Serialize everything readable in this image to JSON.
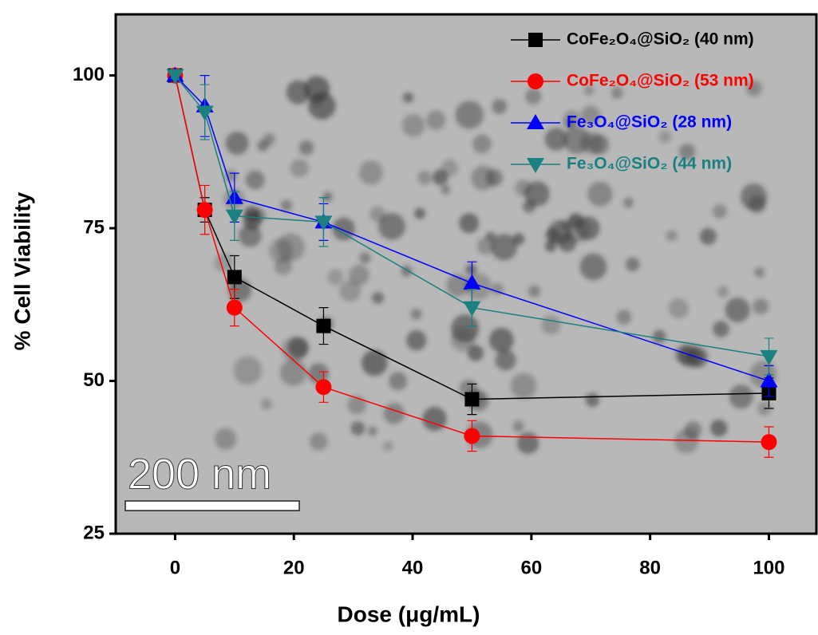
{
  "chart_data": {
    "type": "line",
    "xlabel": "Dose (μg/mL)",
    "ylabel": "% Cell Viability",
    "annotation": "200 nm",
    "x": [
      0,
      5,
      10,
      25,
      50,
      100
    ],
    "series": [
      {
        "name": "CoFe₂O₄@SiO₂ (40 nm)",
        "color": "#000000",
        "marker": "square",
        "values": [
          100,
          78,
          67,
          59,
          47,
          48
        ],
        "errors": [
          0.5,
          2,
          3.5,
          3,
          2.5,
          2.5
        ]
      },
      {
        "name": "CoFe₂O₄@SiO₂ (53 nm)",
        "color": "#ff0000",
        "marker": "circle",
        "values": [
          100,
          78,
          62,
          49,
          41,
          40
        ],
        "errors": [
          0.5,
          4,
          3,
          2.5,
          2.5,
          2.5
        ]
      },
      {
        "name": "Fe₃O₄@SiO₂ (28 nm)",
        "color": "#0000ff",
        "marker": "triangle-up",
        "values": [
          100,
          95,
          80,
          76,
          66,
          50
        ],
        "errors": [
          0.5,
          5,
          4,
          3,
          3.5,
          2.5
        ]
      },
      {
        "name": "Fe₃O₄@SiO₂ (44 nm)",
        "color": "#1a8080",
        "marker": "triangle-down",
        "values": [
          100,
          94,
          77,
          76,
          62,
          54
        ],
        "errors": [
          0.5,
          4.5,
          4,
          4,
          3,
          3
        ]
      }
    ],
    "xlim": [
      -10,
      108
    ],
    "ylim": [
      25,
      110
    ],
    "xticks": [
      0,
      20,
      40,
      60,
      80,
      100
    ],
    "yticks": [
      25,
      50,
      75,
      100
    ],
    "legend": "upper right",
    "grid": false
  }
}
